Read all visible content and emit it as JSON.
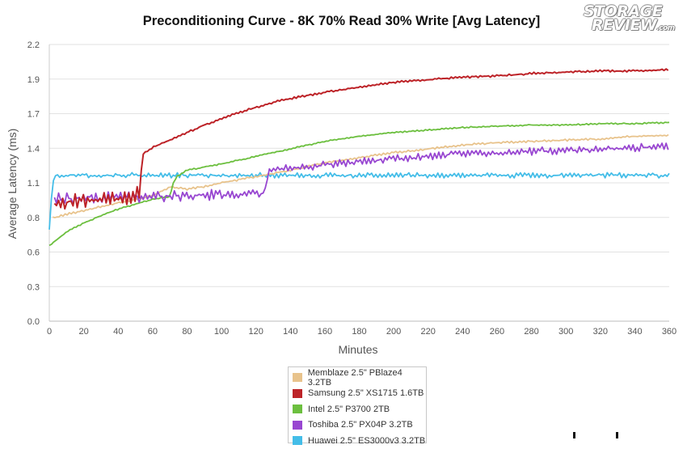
{
  "logo": {
    "line1": "STORAGE",
    "line2": "REVIEW",
    "suffix": ".com"
  },
  "chart_data": {
    "type": "line",
    "title": "Preconditioning Curve - 8K 70% Read 30% Write [Avg Latency]",
    "xlabel": "Minutes",
    "ylabel": "Average Latency (ms)",
    "xlim": [
      0,
      360
    ],
    "ylim": [
      0,
      2.2
    ],
    "xticks": [
      "0",
      "20",
      "40",
      "60",
      "80",
      "100",
      "120",
      "140",
      "160",
      "180",
      "200",
      "220",
      "240",
      "260",
      "280",
      "300",
      "320",
      "340",
      "360"
    ],
    "yticks": [
      "0.0",
      "0.3",
      "0.6",
      "0.8",
      "1.1",
      "1.4",
      "1.7",
      "1.9",
      "2.2"
    ],
    "grid": "horizontal",
    "legend_position": "bottom",
    "series": [
      {
        "name": "Memblaze 2.5\" PBlaze4 3.2TB",
        "color": "#e8c38c",
        "x": [
          2,
          10,
          20,
          30,
          40,
          50,
          60,
          65,
          70,
          80,
          90,
          100,
          120,
          140,
          160,
          180,
          200,
          220,
          240,
          260,
          280,
          300,
          320,
          340,
          360
        ],
        "y": [
          0.82,
          0.85,
          0.88,
          0.91,
          0.94,
          0.97,
          1.0,
          1.03,
          1.07,
          1.05,
          1.07,
          1.1,
          1.15,
          1.2,
          1.26,
          1.3,
          1.34,
          1.37,
          1.4,
          1.42,
          1.43,
          1.44,
          1.45,
          1.47,
          1.48
        ]
      },
      {
        "name": "Samsung 2.5\" XS1715 1.6TB",
        "color": "#bd2328",
        "x": [
          3,
          10,
          20,
          30,
          40,
          50,
          53,
          54,
          60,
          70,
          80,
          90,
          100,
          110,
          120,
          130,
          140,
          160,
          180,
          200,
          220,
          240,
          260,
          280,
          300,
          320,
          340,
          360
        ],
        "y": [
          0.94,
          0.95,
          0.95,
          0.96,
          0.98,
          1.0,
          1.02,
          1.33,
          1.38,
          1.44,
          1.5,
          1.56,
          1.61,
          1.66,
          1.7,
          1.74,
          1.77,
          1.82,
          1.86,
          1.9,
          1.92,
          1.94,
          1.95,
          1.97,
          1.98,
          1.99,
          1.99,
          2.0
        ]
      },
      {
        "name": "Intel 2.5\" P3700 2TB",
        "color": "#6cbf3f",
        "x": [
          0,
          10,
          20,
          30,
          40,
          50,
          60,
          70,
          72,
          74,
          80,
          100,
          120,
          140,
          160,
          180,
          200,
          220,
          240,
          260,
          280,
          300,
          320,
          340,
          360
        ],
        "y": [
          0.6,
          0.71,
          0.78,
          0.84,
          0.89,
          0.93,
          0.97,
          0.99,
          1.1,
          1.15,
          1.2,
          1.25,
          1.31,
          1.37,
          1.43,
          1.47,
          1.5,
          1.52,
          1.54,
          1.55,
          1.56,
          1.56,
          1.57,
          1.57,
          1.58
        ]
      },
      {
        "name": "Toshiba 2.5\" PX04P 3.2TB",
        "color": "#9846d1",
        "x": [
          3,
          10,
          20,
          30,
          40,
          50,
          60,
          70,
          80,
          90,
          100,
          110,
          120,
          126,
          127,
          128,
          140,
          160,
          180,
          200,
          220,
          240,
          260,
          280,
          300,
          320,
          340,
          360
        ],
        "y": [
          0.97,
          0.98,
          0.98,
          0.98,
          0.99,
          0.99,
          0.99,
          1.0,
          1.0,
          1.0,
          1.01,
          1.01,
          1.02,
          1.02,
          1.19,
          1.2,
          1.22,
          1.24,
          1.27,
          1.29,
          1.31,
          1.33,
          1.34,
          1.35,
          1.36,
          1.37,
          1.38,
          1.39
        ]
      },
      {
        "name": "Huawei 2.5\" ES3000v3 3.2TB",
        "color": "#44bde8",
        "x": [
          0,
          1,
          2,
          3,
          4,
          10,
          20,
          40,
          60,
          80,
          100,
          120,
          140,
          160,
          180,
          200,
          220,
          240,
          260,
          280,
          300,
          320,
          340,
          360
        ],
        "y": [
          0.72,
          0.95,
          1.08,
          1.15,
          1.16,
          1.16,
          1.16,
          1.16,
          1.16,
          1.16,
          1.16,
          1.16,
          1.16,
          1.16,
          1.16,
          1.16,
          1.16,
          1.16,
          1.16,
          1.16,
          1.16,
          1.16,
          1.16,
          1.16
        ]
      }
    ]
  }
}
